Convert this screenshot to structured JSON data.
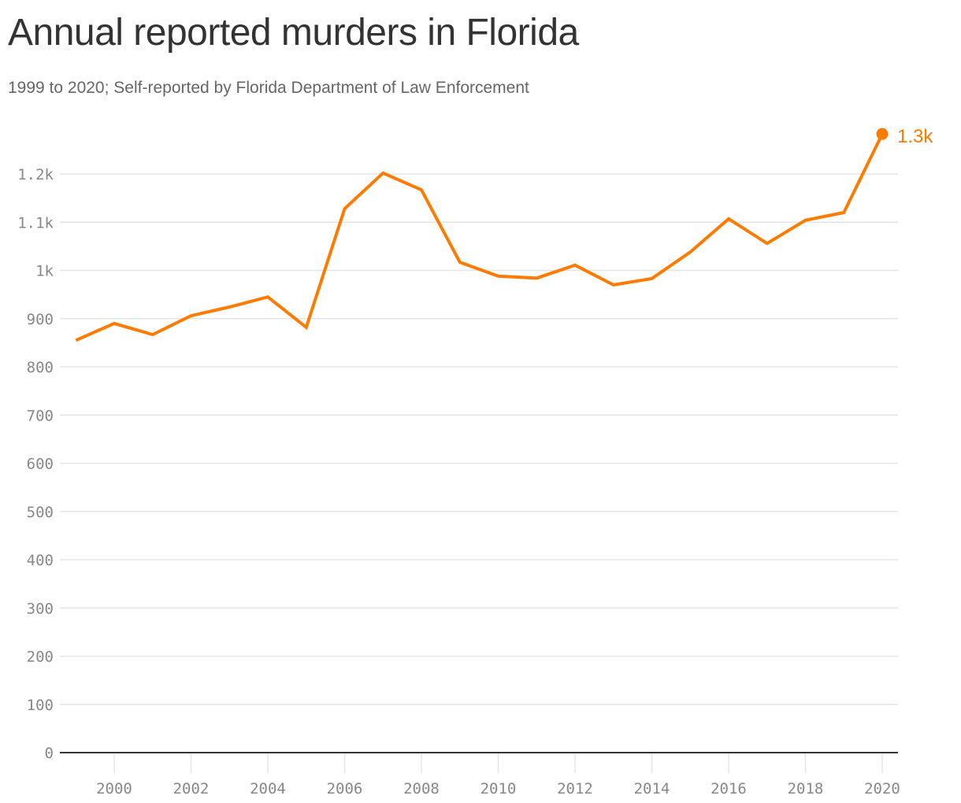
{
  "header": {
    "title": "Annual reported murders in Florida",
    "subtitle": "1999 to 2020; Self-reported by Florida Department of Law Enforcement"
  },
  "colors": {
    "line": "#ff7b00",
    "grid": "#e5e5e5",
    "axis": "#333333",
    "tick_text": "#888888",
    "title": "#333333",
    "subtitle": "#666666"
  },
  "annotation": {
    "label": "1.3k",
    "year": 2020,
    "value": 1283
  },
  "chart_data": {
    "type": "line",
    "title": "Annual reported murders in Florida",
    "subtitle": "1999 to 2020; Self-reported by Florida Department of Law Enforcement",
    "xlabel": "",
    "ylabel": "",
    "x": [
      1999,
      2000,
      2001,
      2002,
      2003,
      2004,
      2005,
      2006,
      2007,
      2008,
      2009,
      2010,
      2011,
      2012,
      2013,
      2014,
      2015,
      2016,
      2017,
      2018,
      2019,
      2020
    ],
    "series": [
      {
        "name": "Reported murders",
        "values": [
          855,
          890,
          867,
          906,
          924,
          945,
          882,
          1128,
          1202,
          1167,
          1017,
          988,
          984,
          1011,
          970,
          983,
          1038,
          1107,
          1056,
          1104,
          1120,
          1283
        ]
      }
    ],
    "ylim": [
      0,
      1300
    ],
    "xlim": [
      1999,
      2020
    ],
    "y_ticks": [
      0,
      100,
      200,
      300,
      400,
      500,
      600,
      700,
      800,
      900,
      1000,
      1100,
      1200
    ],
    "y_tick_labels": [
      "0",
      "100",
      "200",
      "300",
      "400",
      "500",
      "600",
      "700",
      "800",
      "900",
      "1k",
      "1.1k",
      "1.2k"
    ],
    "x_ticks": [
      2000,
      2002,
      2004,
      2006,
      2008,
      2010,
      2012,
      2014,
      2016,
      2018,
      2020
    ],
    "x_tick_labels": [
      "2000",
      "2002",
      "2004",
      "2006",
      "2008",
      "2010",
      "2012",
      "2014",
      "2016",
      "2018",
      "2020"
    ],
    "grid": true,
    "legend": "none",
    "end_label": "1.3k"
  }
}
